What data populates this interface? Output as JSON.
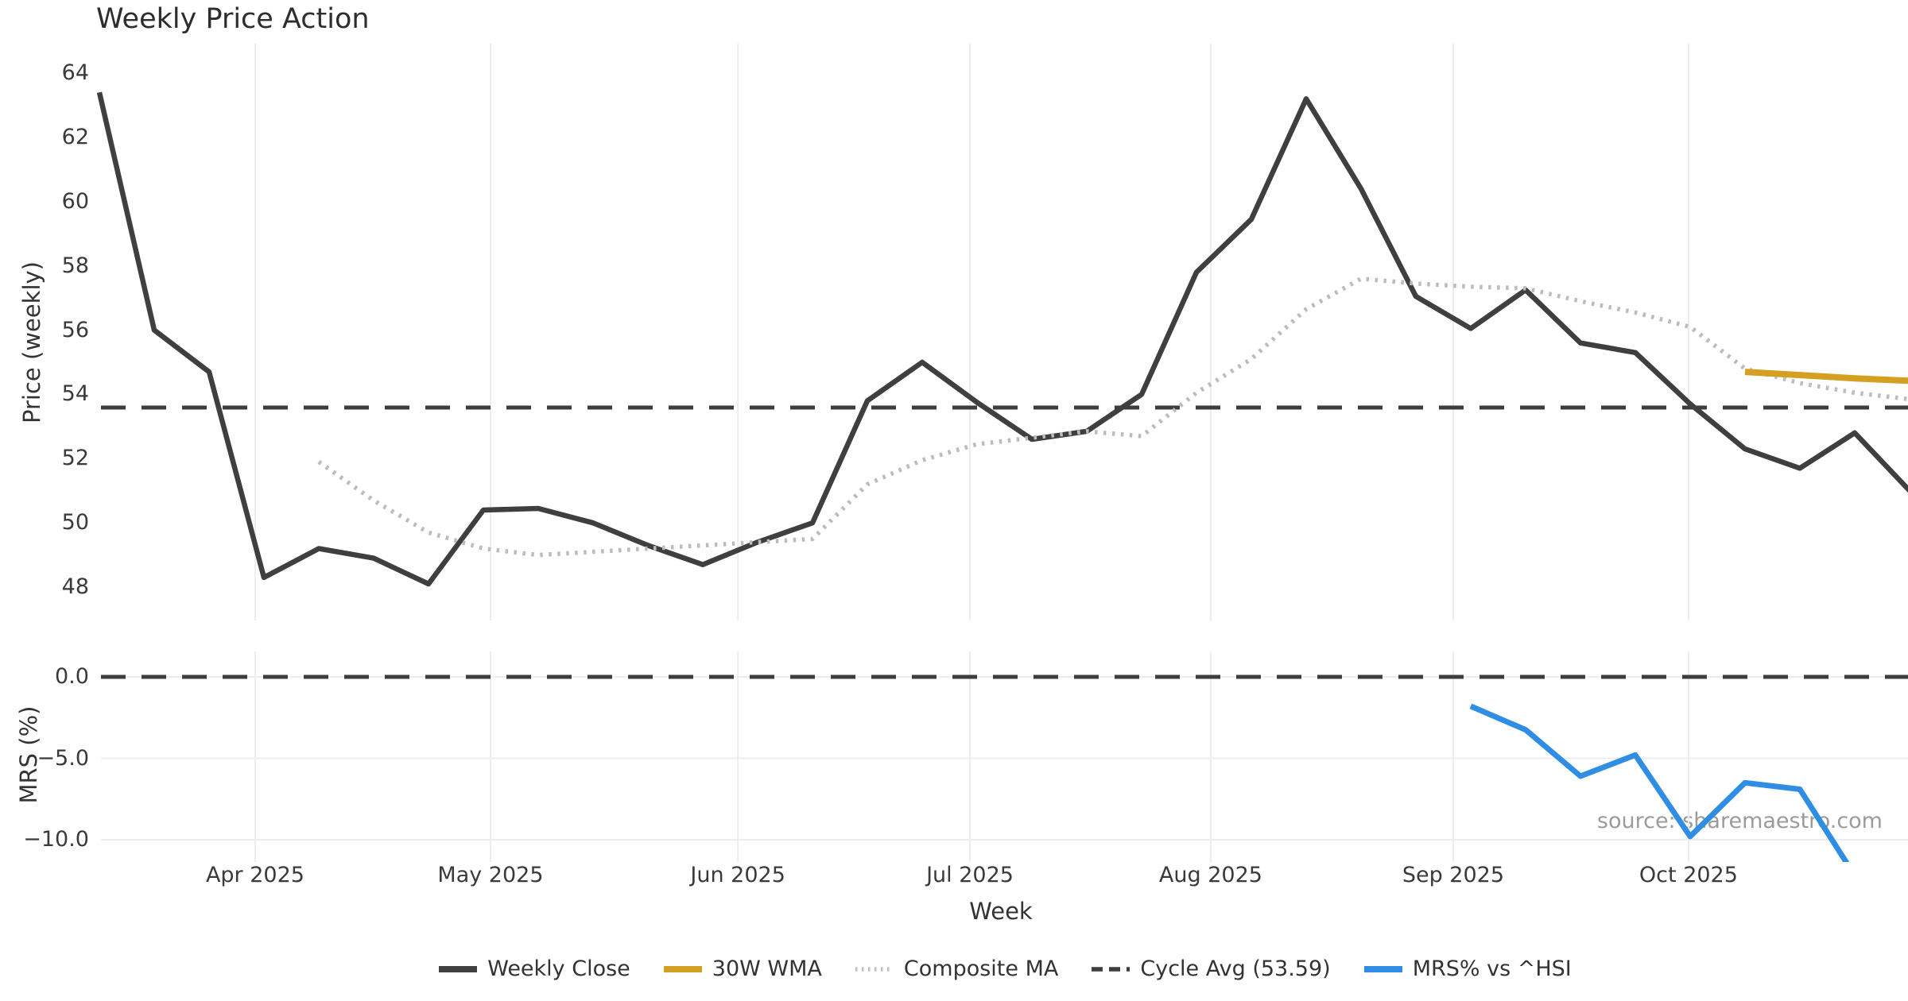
{
  "figure": {
    "title": "Weekly Price Action",
    "xlabel": "Week",
    "source": "source: sharemaestro.com"
  },
  "colors": {
    "weekly_close": "#3f3f3f",
    "wma30": "#d5a021",
    "composite": "#bcbcbc",
    "cycle_avg": "#3d3d3d",
    "mrs": "#2f8ee4",
    "grid": "#ececf1",
    "text": "#333333",
    "source_text": "#9b9b9b"
  },
  "legend": [
    {
      "label": "Weekly Close",
      "style": "solid",
      "color_key": "weekly_close"
    },
    {
      "label": "30W WMA",
      "style": "solid",
      "color_key": "wma30"
    },
    {
      "label": "Composite MA",
      "style": "dotted",
      "color_key": "composite"
    },
    {
      "label": "Cycle Avg (53.59)",
      "style": "dashed",
      "color_key": "cycle_avg"
    },
    {
      "label": "MRS% vs ^HSI",
      "style": "solid",
      "color_key": "mrs"
    }
  ],
  "x_axis": {
    "label": "Week",
    "n_weeks": 34,
    "ticks": [
      {
        "label": "Apr 2025",
        "week": 3.84
      },
      {
        "label": "May 2025",
        "week": 8.13
      },
      {
        "label": "Jun 2025",
        "week": 12.64
      },
      {
        "label": "Jul 2025",
        "week": 16.87
      },
      {
        "label": "Aug 2025",
        "week": 21.26
      },
      {
        "label": "Sep 2025",
        "week": 25.68
      },
      {
        "label": "Oct 2025",
        "week": 29.97
      }
    ]
  },
  "chart_data": [
    {
      "type": "line",
      "title": "Weekly Price Action",
      "ylabel": "Price (weekly)",
      "xlabel": "Week",
      "x_unit": "weekly index 1-34, Apr-Oct 2025",
      "ylim": [
        46.9,
        64.9
      ],
      "yticks": [
        64,
        62,
        60,
        58,
        56,
        54,
        52,
        50,
        48
      ],
      "grid": "vertical month gridlines only",
      "legend_position": "bottom center (shared)",
      "cycle_avg_value": 53.59,
      "series": [
        {
          "name": "Weekly Close",
          "color_key": "weekly_close",
          "style": "solid",
          "values": [
            63.4,
            56.0,
            54.7,
            48.3,
            49.2,
            48.9,
            48.1,
            50.4,
            50.45,
            50.0,
            49.3,
            48.7,
            49.4,
            50.0,
            53.8,
            55.0,
            53.75,
            52.6,
            52.85,
            54.0,
            57.8,
            59.45,
            63.2,
            60.4,
            57.05,
            56.05,
            57.25,
            55.6,
            55.3,
            53.7,
            52.3,
            51.7,
            52.8,
            51.0
          ]
        },
        {
          "name": "Composite MA",
          "color_key": "composite",
          "style": "dotted",
          "values": [
            null,
            null,
            null,
            null,
            51.9,
            50.7,
            49.7,
            49.2,
            49.0,
            49.1,
            49.2,
            49.3,
            49.4,
            49.5,
            51.2,
            51.95,
            52.45,
            52.65,
            52.85,
            52.7,
            54.05,
            55.1,
            56.65,
            57.6,
            57.45,
            57.35,
            57.3,
            56.9,
            56.55,
            56.1,
            54.8,
            54.35,
            54.05,
            53.85
          ]
        },
        {
          "name": "30W WMA",
          "color_key": "wma30",
          "style": "solid",
          "values": [
            null,
            null,
            null,
            null,
            null,
            null,
            null,
            null,
            null,
            null,
            null,
            null,
            null,
            null,
            null,
            null,
            null,
            null,
            null,
            null,
            null,
            null,
            null,
            null,
            null,
            null,
            null,
            null,
            null,
            null,
            54.7,
            54.6,
            54.5,
            54.42
          ]
        },
        {
          "name": "Cycle Avg (53.59)",
          "color_key": "cycle_avg",
          "style": "dashed",
          "constant": 53.59
        }
      ]
    },
    {
      "type": "line",
      "ylabel": "MRS (%)",
      "ylim": [
        -11.4,
        1.6
      ],
      "yticks": [
        0.0,
        -5.0,
        -10.0
      ],
      "ytick_labels": [
        "0.0",
        "−5.0",
        "−10.0"
      ],
      "grid": "horizontal at yticks + vertical month gridlines",
      "zero_line": {
        "value": 0.0,
        "style": "dashed"
      },
      "series": [
        {
          "name": "MRS% vs ^HSI",
          "color_key": "mrs",
          "style": "solid",
          "values": [
            null,
            null,
            null,
            null,
            null,
            null,
            null,
            null,
            null,
            null,
            null,
            null,
            null,
            null,
            null,
            null,
            null,
            null,
            null,
            null,
            null,
            null,
            null,
            null,
            null,
            -1.8,
            -3.25,
            -6.1,
            -4.8,
            -9.8,
            -6.5,
            -6.9,
            -12.2,
            null
          ]
        }
      ]
    }
  ]
}
